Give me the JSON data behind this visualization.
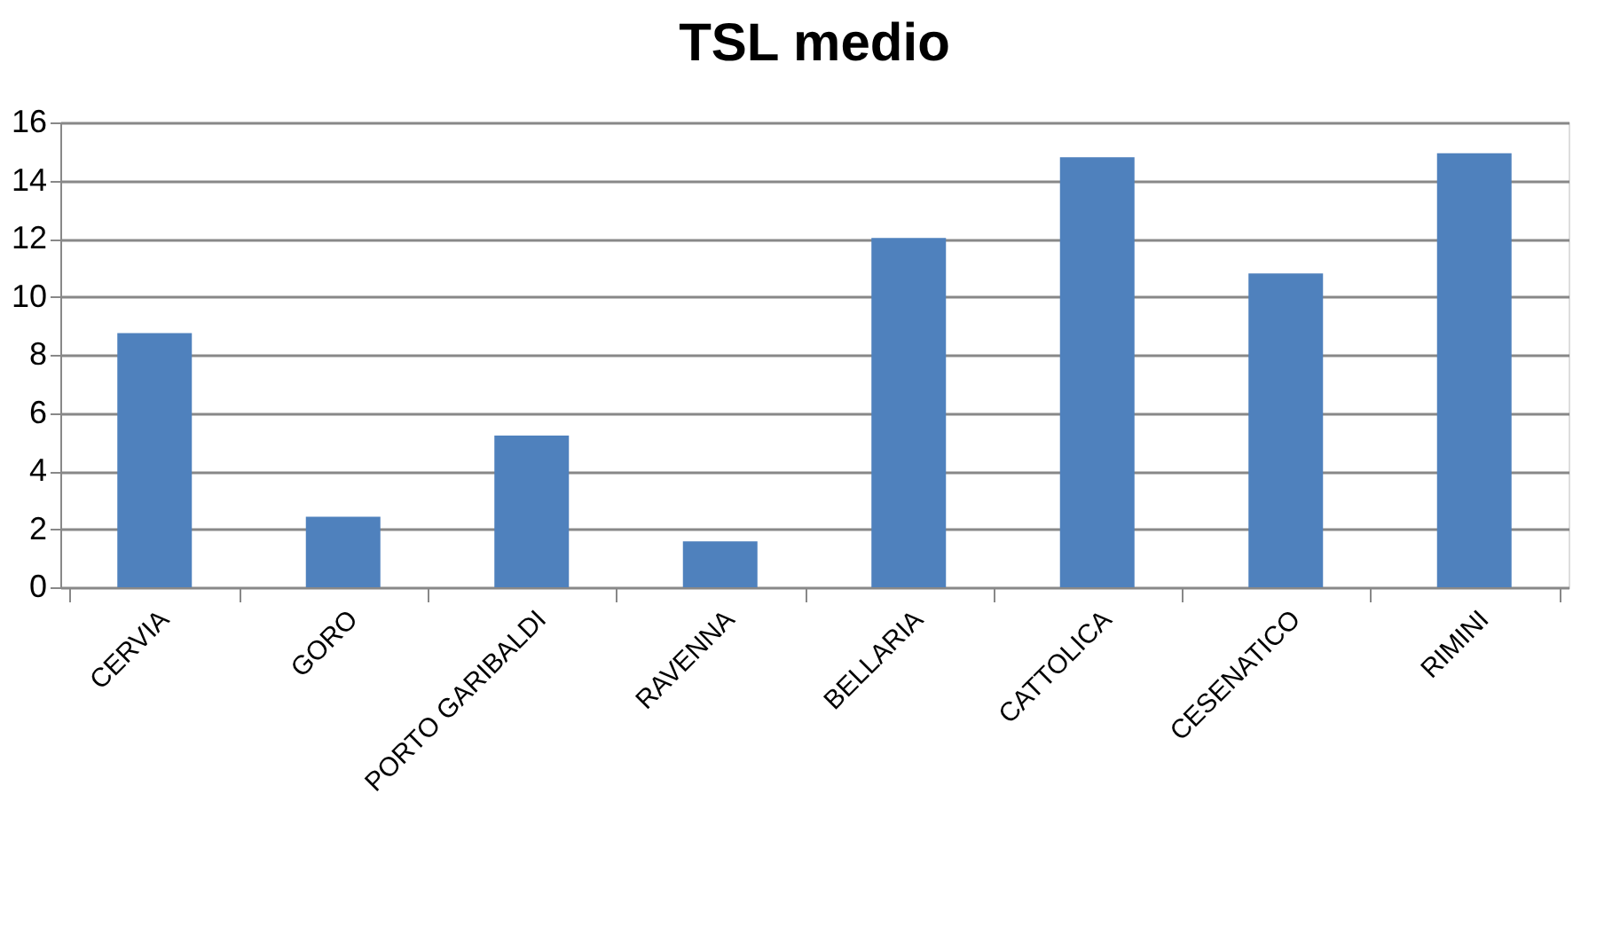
{
  "chart_data": {
    "type": "bar",
    "title": "TSL medio",
    "categories": [
      "CERVIA",
      "GORO",
      "PORTO GARIBALDI",
      "RAVENNA",
      "BELLARIA",
      "CATTOLICA",
      "CESENATICO",
      "RIMINI"
    ],
    "values": [
      8.75,
      2.43,
      5.22,
      1.58,
      12.02,
      14.8,
      10.8,
      14.94
    ],
    "color": "#4f81bd",
    "ylim": [
      0,
      16
    ],
    "yticks": [
      0,
      2,
      4,
      6,
      8,
      10,
      12,
      14,
      16
    ],
    "grid": "y"
  }
}
